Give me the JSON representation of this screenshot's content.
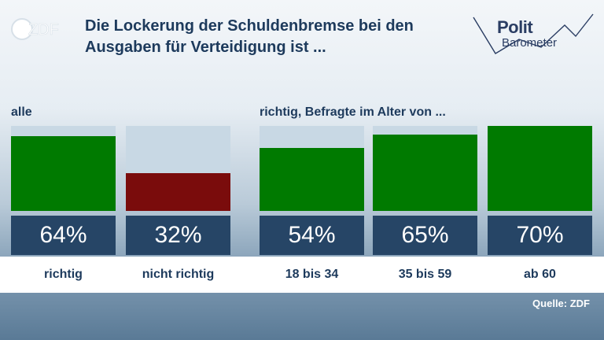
{
  "logo": {
    "zdf_text": "ZDF"
  },
  "title": "Die Lockerung der Schuldenbremse bei den Ausgaben für Verteidigung ist ...",
  "brand": {
    "line1": "Polit",
    "line2": "Barometer"
  },
  "groups": [
    {
      "label": "alle"
    },
    {
      "label": "richtig, Befragte im Alter von ..."
    }
  ],
  "colors": {
    "green": "#007a00",
    "red": "#7a0c0c",
    "slot": "#c8d8e4",
    "value_box": "#264566"
  },
  "chart_data": {
    "type": "bar",
    "ylim": [
      0,
      100
    ],
    "bars": [
      {
        "category": "richtig",
        "value": 64,
        "label": "64%",
        "color": "#007a00"
      },
      {
        "category": "nicht richtig",
        "value": 32,
        "label": "32%",
        "color": "#7a0c0c"
      },
      {
        "category": "18 bis 34",
        "value": 54,
        "label": "54%",
        "color": "#007a00"
      },
      {
        "category": "35 bis 59",
        "value": 65,
        "label": "65%",
        "color": "#007a00"
      },
      {
        "category": "ab 60",
        "value": 70,
        "label": "70%",
        "color": "#007a00"
      }
    ]
  },
  "source": "Quelle: ZDF"
}
